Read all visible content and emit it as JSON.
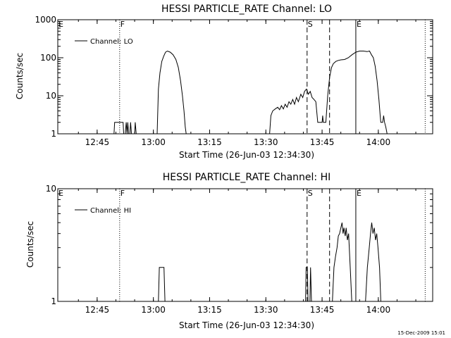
{
  "footer": {
    "timestamp": "15-Dec-2009 15:01"
  },
  "chart_data": [
    {
      "type": "line",
      "title": "HESSI PARTICLE_RATE Channel: LO",
      "xlabel": "Start Time (26-Jun-03 12:34:30)",
      "ylabel": "Counts/sec",
      "yscale": "log",
      "ylim": [
        1,
        1000
      ],
      "xlim": [
        "12:34:30",
        "14:14:30"
      ],
      "xticks": [
        "12:45",
        "13:00",
        "13:15",
        "13:30",
        "13:45",
        "14:00"
      ],
      "yticks": [
        "1",
        "10",
        "100",
        "1000"
      ],
      "legend": "top-left",
      "series": [
        {
          "name": "Channel: LO",
          "points": [
            [
              "12:49:30",
              1
            ],
            [
              "12:49:40",
              2
            ],
            [
              "12:51:55",
              2
            ],
            [
              "12:52:05",
              1
            ],
            [
              "12:52:30",
              1
            ],
            [
              "12:52:45",
              2
            ],
            [
              "12:53:00",
              1
            ],
            [
              "12:53:10",
              2
            ],
            [
              "12:53:25",
              1
            ],
            [
              "12:53:45",
              1
            ],
            [
              "12:53:55",
              2
            ],
            [
              "12:54:10",
              1
            ],
            [
              "12:55:00",
              1
            ],
            [
              "12:55:10",
              2
            ],
            [
              "12:55:25",
              1
            ],
            [
              "13:01:00",
              1
            ],
            [
              "13:01:20",
              15
            ],
            [
              "13:01:45",
              40
            ],
            [
              "13:02:15",
              80
            ],
            [
              "13:02:45",
              110
            ],
            [
              "13:03:15",
              140
            ],
            [
              "13:03:45",
              150
            ],
            [
              "13:04:30",
              140
            ],
            [
              "13:05:15",
              120
            ],
            [
              "13:06:00",
              90
            ],
            [
              "13:06:40",
              55
            ],
            [
              "13:07:15",
              25
            ],
            [
              "13:07:45",
              10
            ],
            [
              "13:08:10",
              4
            ],
            [
              "13:08:30",
              1.5
            ],
            [
              "13:08:45",
              1
            ],
            [
              "13:31:00",
              1
            ],
            [
              "13:31:20",
              3
            ],
            [
              "13:31:50",
              4
            ],
            [
              "13:32:30",
              4.5
            ],
            [
              "13:33:10",
              5
            ],
            [
              "13:33:40",
              4.3
            ],
            [
              "13:34:10",
              5.5
            ],
            [
              "13:34:40",
              4.5
            ],
            [
              "13:35:10",
              6
            ],
            [
              "13:35:40",
              5
            ],
            [
              "13:36:10",
              7
            ],
            [
              "13:36:40",
              6
            ],
            [
              "13:37:10",
              8
            ],
            [
              "13:37:40",
              6
            ],
            [
              "13:38:10",
              9
            ],
            [
              "13:38:40",
              7
            ],
            [
              "13:39:20",
              11
            ],
            [
              "13:39:50",
              9
            ],
            [
              "13:40:20",
              13
            ],
            [
              "13:40:50",
              15
            ],
            [
              "13:41:20",
              11
            ],
            [
              "13:41:50",
              13
            ],
            [
              "13:42:20",
              9
            ],
            [
              "13:42:50",
              8
            ],
            [
              "13:43:20",
              7
            ],
            [
              "13:43:50",
              2
            ],
            [
              "13:45:00",
              2
            ],
            [
              "13:45:10",
              3
            ],
            [
              "13:45:20",
              2
            ],
            [
              "13:46:00",
              2
            ],
            [
              "13:46:30",
              10
            ],
            [
              "13:47:00",
              30
            ],
            [
              "13:47:30",
              55
            ],
            [
              "13:48:00",
              70
            ],
            [
              "13:48:40",
              80
            ],
            [
              "13:49:20",
              85
            ],
            [
              "13:50:00",
              88
            ],
            [
              "13:51:00",
              90
            ],
            [
              "13:52:00",
              100
            ],
            [
              "13:53:00",
              120
            ],
            [
              "13:54:00",
              140
            ],
            [
              "13:55:00",
              150
            ],
            [
              "13:56:00",
              150
            ],
            [
              "13:57:00",
              145
            ],
            [
              "13:57:40",
              150
            ],
            [
              "13:58:10",
              120
            ],
            [
              "13:58:40",
              100
            ],
            [
              "13:59:10",
              60
            ],
            [
              "13:59:40",
              25
            ],
            [
              "14:00:10",
              8
            ],
            [
              "14:00:30",
              3
            ],
            [
              "14:00:40",
              2
            ],
            [
              "14:01:10",
              2
            ],
            [
              "14:01:25",
              3
            ],
            [
              "14:01:40",
              2
            ],
            [
              "14:02:00",
              1.5
            ],
            [
              "14:02:20",
              1
            ]
          ]
        }
      ],
      "markers": [
        {
          "label": "E",
          "time": "12:34:30",
          "style": "solid"
        },
        {
          "label": "F",
          "time": "12:51:00",
          "style": "dotted"
        },
        {
          "label": "S",
          "time": "13:41:00",
          "style": "dashed"
        },
        {
          "label": "",
          "time": "13:47:00",
          "style": "dashed"
        },
        {
          "label": "E",
          "time": "13:54:00",
          "style": "solid"
        },
        {
          "label": "",
          "time": "14:12:30",
          "style": "dotted"
        }
      ]
    },
    {
      "type": "line",
      "title": "HESSI PARTICLE_RATE Channel: HI",
      "xlabel": "Start Time (26-Jun-03 12:34:30)",
      "ylabel": "Counts/sec",
      "yscale": "log",
      "ylim": [
        1,
        10
      ],
      "xlim": [
        "12:34:30",
        "14:14:30"
      ],
      "xticks": [
        "12:45",
        "13:00",
        "13:15",
        "13:30",
        "13:45",
        "14:00"
      ],
      "yticks": [
        "1",
        "10"
      ],
      "legend": "top-left",
      "series": [
        {
          "name": "Channel: HI",
          "points": [
            [
              "13:01:20",
              1
            ],
            [
              "13:01:35",
              2
            ],
            [
              "13:02:50",
              2
            ],
            [
              "13:03:05",
              1
            ],
            [
              "13:40:35",
              1
            ],
            [
              "13:40:45",
              2
            ],
            [
              "13:41:05",
              2
            ],
            [
              "13:41:15",
              1
            ],
            [
              "13:41:45",
              1
            ],
            [
              "13:41:55",
              2
            ],
            [
              "13:42:10",
              1
            ],
            [
              "13:47:45",
              1
            ],
            [
              "13:48:10",
              2
            ],
            [
              "13:48:35",
              2.5
            ],
            [
              "13:49:00",
              3
            ],
            [
              "13:49:20",
              3.8
            ],
            [
              "13:49:40",
              4
            ],
            [
              "13:50:00",
              4.5
            ],
            [
              "13:50:20",
              5
            ],
            [
              "13:50:35",
              4
            ],
            [
              "13:50:50",
              4.5
            ],
            [
              "13:51:10",
              3.8
            ],
            [
              "13:51:25",
              4.5
            ],
            [
              "13:51:45",
              3.5
            ],
            [
              "13:52:05",
              4
            ],
            [
              "13:52:30",
              2
            ],
            [
              "13:52:55",
              1
            ],
            [
              "13:56:35",
              1
            ],
            [
              "13:57:05",
              2
            ],
            [
              "13:57:35",
              3
            ],
            [
              "13:57:55",
              4
            ],
            [
              "13:58:15",
              5
            ],
            [
              "13:58:35",
              4
            ],
            [
              "13:58:55",
              4.5
            ],
            [
              "13:59:15",
              3.5
            ],
            [
              "13:59:35",
              4
            ],
            [
              "13:59:55",
              3
            ],
            [
              "14:00:20",
              2
            ],
            [
              "14:00:40",
              1
            ]
          ]
        }
      ],
      "markers": [
        {
          "label": "E",
          "time": "12:34:30",
          "style": "solid"
        },
        {
          "label": "F",
          "time": "12:51:00",
          "style": "dotted"
        },
        {
          "label": "S",
          "time": "13:41:00",
          "style": "dashed"
        },
        {
          "label": "",
          "time": "13:47:00",
          "style": "dashed"
        },
        {
          "label": "E",
          "time": "13:54:00",
          "style": "solid"
        },
        {
          "label": "",
          "time": "14:12:30",
          "style": "dotted"
        }
      ]
    }
  ]
}
